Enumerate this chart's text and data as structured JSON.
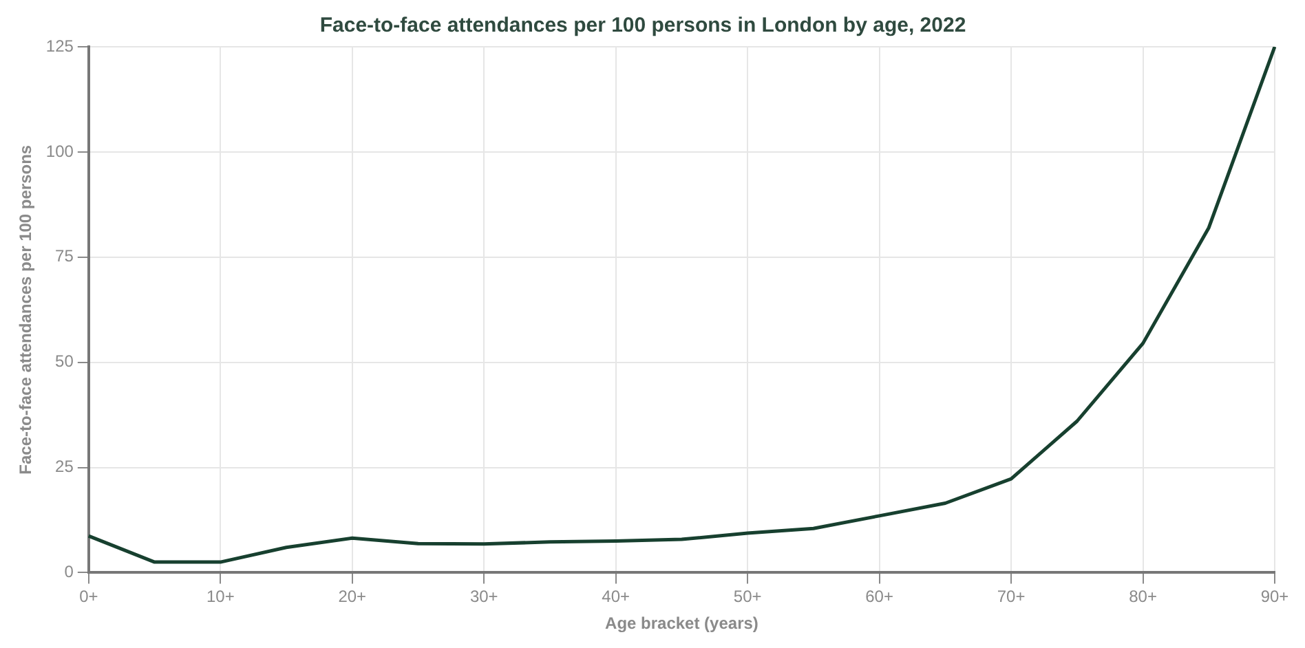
{
  "chart_data": {
    "type": "line",
    "title": "Face-to-face attendances per 100 persons in London by age, 2022",
    "xlabel": "Age bracket (years)",
    "ylabel": "Face-to-face attendances per 100 persons",
    "categories": [
      "0+",
      null,
      "10+",
      null,
      "20+",
      null,
      "30+",
      null,
      "40+",
      null,
      "50+",
      null,
      "60+",
      null,
      "70+",
      null,
      "80+",
      null,
      "90+"
    ],
    "series": [
      {
        "color": "#17402f",
        "values": [
          8.7,
          2.5,
          2.5,
          6,
          8.2,
          6.9,
          6.8,
          7.3,
          7.5,
          7.9,
          9.4,
          10.5,
          13.5,
          16.5,
          22.3,
          36,
          54.5,
          82,
          125
        ]
      }
    ],
    "ylim": [
      0,
      125
    ],
    "yticks": [
      0,
      25,
      50,
      75,
      100,
      125
    ],
    "grid": true,
    "legend": false,
    "marker": "none",
    "line_style": "solid"
  }
}
